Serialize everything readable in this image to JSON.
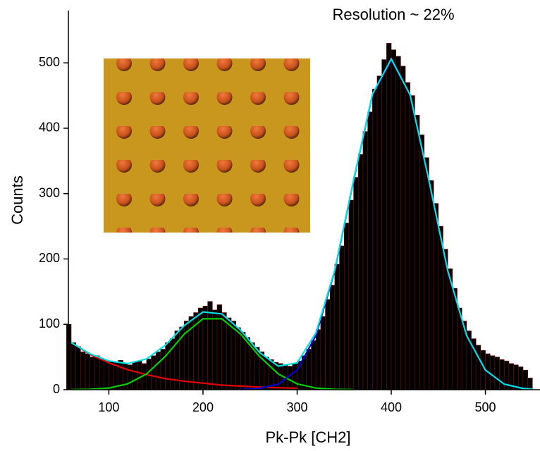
{
  "chart_data": {
    "type": "histogram",
    "annotation": "Resolution ~ 22%",
    "x_label": "Pk-Pk [CH2]",
    "y_label": "Counts",
    "color": "#000000",
    "edge_color": "#7a0a0a",
    "bins": [
      55,
      60,
      65,
      70,
      75,
      80,
      85,
      90,
      95,
      100,
      105,
      110,
      115,
      120,
      125,
      130,
      135,
      140,
      145,
      150,
      155,
      160,
      165,
      170,
      175,
      180,
      185,
      190,
      195,
      200,
      205,
      210,
      215,
      220,
      225,
      230,
      235,
      240,
      245,
      250,
      255,
      260,
      265,
      270,
      275,
      280,
      285,
      290,
      295,
      300,
      305,
      310,
      315,
      320,
      325,
      330,
      335,
      340,
      345,
      350,
      355,
      360,
      365,
      370,
      375,
      380,
      385,
      390,
      395,
      400,
      405,
      410,
      415,
      420,
      425,
      430,
      435,
      440,
      445,
      450,
      455,
      460,
      465,
      470,
      475,
      480,
      485,
      490,
      495,
      500,
      505,
      510,
      515,
      520,
      525,
      530,
      535,
      540,
      545,
      550
    ],
    "counts": [
      100,
      72,
      66,
      58,
      55,
      50,
      52,
      47,
      45,
      44,
      42,
      45,
      40,
      38,
      42,
      44,
      40,
      47,
      52,
      58,
      62,
      72,
      78,
      90,
      96,
      105,
      112,
      118,
      125,
      128,
      135,
      122,
      130,
      118,
      110,
      105,
      95,
      88,
      80,
      72,
      65,
      58,
      50,
      46,
      42,
      40,
      38,
      36,
      40,
      44,
      52,
      62,
      75,
      92,
      112,
      138,
      160,
      192,
      220,
      255,
      290,
      325,
      360,
      395,
      425,
      460,
      480,
      505,
      530,
      520,
      510,
      495,
      470,
      450,
      420,
      390,
      355,
      320,
      285,
      250,
      215,
      185,
      155,
      125,
      105,
      90,
      78,
      68,
      60,
      55,
      52,
      50,
      46,
      44,
      40,
      38,
      35,
      30,
      18
    ],
    "curves": [
      {
        "color": "#e00000",
        "x": [
          60,
          80,
          100,
          120,
          140,
          160,
          180,
          200,
          220,
          240,
          260,
          280,
          300
        ],
        "values": [
          72,
          54,
          41,
          30.5,
          23,
          17,
          13,
          10,
          7,
          5.5,
          4,
          3,
          2.3
        ]
      },
      {
        "color": "#00d000",
        "x": [
          60,
          80,
          100,
          120,
          140,
          160,
          180,
          200,
          220,
          240,
          260,
          280,
          300,
          320,
          340,
          360
        ],
        "values": [
          0.1,
          0.6,
          2.5,
          9,
          24,
          51,
          85,
          108.5,
          108.5,
          85,
          51,
          24,
          9,
          2.5,
          0.6,
          0.1
        ]
      },
      {
        "color": "#0000d0",
        "x": [
          240,
          260,
          280,
          300,
          320,
          340,
          360,
          380,
          400,
          420,
          440,
          460,
          480,
          500,
          520,
          540,
          550
        ],
        "values": [
          0.3,
          1.9,
          8.5,
          30,
          83,
          182,
          320,
          451,
          505,
          451,
          320,
          182,
          83,
          30,
          8.5,
          1.9,
          0.8
        ]
      },
      {
        "color": "#00e0e0",
        "x": [
          60,
          80,
          100,
          120,
          140,
          160,
          180,
          200,
          220,
          240,
          260,
          280,
          300,
          320,
          340,
          360,
          380,
          400,
          420,
          440,
          460,
          480,
          500,
          520,
          540,
          550
        ],
        "values": [
          72,
          55,
          44,
          40,
          47,
          68,
          98,
          119,
          116,
          91,
          57,
          36,
          41,
          87,
          183,
          321,
          452,
          506,
          451,
          320,
          182,
          83,
          30,
          8.5,
          1.9,
          0.8
        ]
      }
    ],
    "xlim": [
      57,
      558
    ],
    "ylim": [
      0,
      580
    ],
    "xticks": [
      100,
      200,
      300,
      400,
      500
    ],
    "yticks": [
      0,
      100,
      200,
      300,
      400,
      500
    ]
  }
}
